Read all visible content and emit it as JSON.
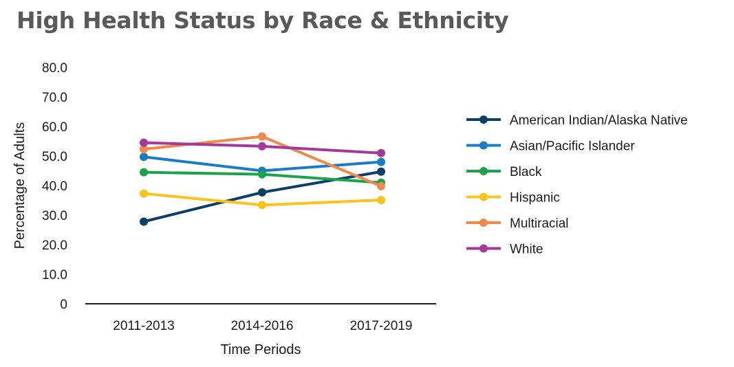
{
  "chart_data": {
    "type": "line",
    "title": "High Health Status by Race & Ethnicity",
    "xlabel": "Time Periods",
    "ylabel": "Percentage of Adults",
    "categories": [
      "2011-2013",
      "2014-2016",
      "2017-2019"
    ],
    "ylim": [
      0,
      80
    ],
    "yticks": [
      "0",
      "10.0",
      "20.0",
      "30.0",
      "40.0",
      "50.0",
      "60.0",
      "70.0",
      "80.0"
    ],
    "grid": false,
    "legend_position": "right",
    "series": [
      {
        "name": "American Indian/Alaska Native",
        "color": "#0c3f66",
        "values": [
          27.8,
          37.7,
          44.7
        ]
      },
      {
        "name": "Asian/Pacific Islander",
        "color": "#1a7cc4",
        "values": [
          49.7,
          45.0,
          48.0
        ]
      },
      {
        "name": "Black",
        "color": "#1aa34a",
        "values": [
          44.5,
          43.8,
          41.0
        ]
      },
      {
        "name": "Hispanic",
        "color": "#fbc21b",
        "values": [
          37.3,
          33.4,
          35.1
        ]
      },
      {
        "name": "Multiracial",
        "color": "#f08a4b",
        "values": [
          52.3,
          56.6,
          39.8
        ]
      },
      {
        "name": "White",
        "color": "#a3399b",
        "values": [
          54.5,
          53.3,
          51.0
        ]
      }
    ]
  }
}
